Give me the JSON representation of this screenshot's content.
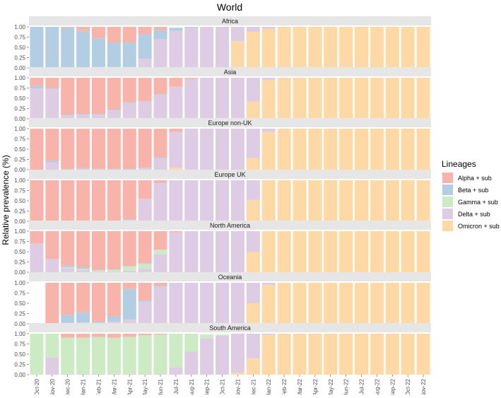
{
  "chart_data": {
    "type": "bar",
    "stacked": true,
    "title": "World",
    "ylabel": "Relative prevalence (%)",
    "xlabel": "",
    "ylim": [
      0,
      1
    ],
    "yticks": [
      "0.00",
      "0.25",
      "0.50",
      "0.75",
      "1.00"
    ],
    "months": [
      "Oct-20",
      "Nov-20",
      "Dec-20",
      "Jan-21",
      "Feb-21",
      "Mar-21",
      "Apr-21",
      "May-21",
      "Jun-21",
      "Jul-21",
      "Aug-21",
      "Sep-21",
      "Oct-21",
      "Nov-21",
      "Dec-21",
      "Jan-22",
      "Feb-22",
      "Mar-22",
      "Apr-22",
      "May-22",
      "Jun-22",
      "Jul-22",
      "Aug-22",
      "Sep-22",
      "Oct-22",
      "Nov-22"
    ],
    "legend": {
      "title": "Lineages",
      "position": "right",
      "entries": [
        {
          "key": "alpha",
          "label": "Alpha + sub",
          "color": "#F8B3AB"
        },
        {
          "key": "beta",
          "label": "Beta + sub",
          "color": "#B3CDE3"
        },
        {
          "key": "gamma",
          "label": "Gamma + sub",
          "color": "#CCEBC5"
        },
        {
          "key": "delta",
          "label": "Delta + sub",
          "color": "#DECBE4"
        },
        {
          "key": "omicron",
          "label": "Omicron + sub",
          "color": "#FED9A6"
        }
      ]
    },
    "series_order_bottom_to_top": [
      "omicron",
      "delta",
      "gamma",
      "beta",
      "alpha"
    ],
    "panels": [
      {
        "name": "Africa",
        "alpha": [
          0,
          0,
          0.02,
          0.1,
          0.28,
          0.38,
          0.38,
          0.18,
          0.08,
          0,
          0,
          0,
          0,
          0,
          0,
          0,
          0,
          0,
          0,
          0,
          0,
          0,
          0,
          0,
          0,
          0
        ],
        "beta": [
          1,
          1,
          0.98,
          0.9,
          0.7,
          0.6,
          0.6,
          0.6,
          0.22,
          0.08,
          0.02,
          0,
          0,
          0,
          0,
          0,
          0,
          0,
          0,
          0,
          0,
          0,
          0,
          0,
          0,
          0
        ],
        "gamma": [
          0,
          0,
          0,
          0,
          0,
          0,
          0,
          0,
          0,
          0,
          0,
          0,
          0,
          0,
          0,
          0,
          0,
          0,
          0,
          0,
          0,
          0,
          0,
          0,
          0,
          0
        ],
        "delta": [
          0,
          0,
          0,
          0,
          0.02,
          0.02,
          0.02,
          0.22,
          0.7,
          0.9,
          0.98,
          1,
          1,
          0.35,
          0.12,
          0.05,
          0,
          0,
          0,
          0,
          0,
          0,
          0,
          0,
          0,
          0
        ],
        "omicron": [
          0,
          0,
          0,
          0,
          0,
          0,
          0,
          0,
          0,
          0,
          0,
          0,
          0,
          0.65,
          0.88,
          0.95,
          1,
          1,
          1,
          1,
          1,
          1,
          1,
          1,
          1,
          1
        ]
      },
      {
        "name": "Asia",
        "alpha": [
          0.2,
          0.25,
          0.9,
          0.88,
          0.88,
          0.78,
          0.6,
          0.57,
          0.4,
          0.22,
          0.03,
          0,
          0,
          0,
          0,
          0,
          0,
          0,
          0,
          0,
          0,
          0,
          0,
          0,
          0,
          0
        ],
        "beta": [
          0.06,
          0.02,
          0.02,
          0.02,
          0.02,
          0.02,
          0.02,
          0,
          0.02,
          0,
          0,
          0,
          0,
          0,
          0,
          0,
          0,
          0,
          0,
          0,
          0,
          0,
          0,
          0,
          0,
          0
        ],
        "gamma": [
          0,
          0,
          0,
          0,
          0,
          0,
          0,
          0,
          0,
          0,
          0,
          0,
          0,
          0,
          0,
          0,
          0,
          0,
          0,
          0,
          0,
          0,
          0,
          0,
          0,
          0
        ],
        "delta": [
          0.74,
          0.73,
          0.08,
          0.1,
          0.1,
          0.2,
          0.38,
          0.43,
          0.58,
          0.78,
          0.97,
          1,
          1,
          1,
          0.58,
          0.05,
          0,
          0,
          0,
          0,
          0,
          0,
          0,
          0,
          0,
          0
        ],
        "omicron": [
          0,
          0,
          0,
          0,
          0,
          0,
          0,
          0,
          0,
          0,
          0,
          0,
          0,
          0,
          0.42,
          0.95,
          1,
          1,
          1,
          1,
          1,
          1,
          1,
          1,
          1,
          1
        ]
      },
      {
        "name": "Europe non-UK",
        "alpha": [
          1,
          0.78,
          0.98,
          0.96,
          0.98,
          0.98,
          0.98,
          0.95,
          0.7,
          0.08,
          0,
          0,
          0,
          0,
          0,
          0,
          0,
          0,
          0,
          0,
          0,
          0,
          0,
          0,
          0,
          0
        ],
        "beta": [
          0,
          0.04,
          0.01,
          0.02,
          0.01,
          0.01,
          0.01,
          0.01,
          0.02,
          0,
          0,
          0,
          0,
          0,
          0,
          0,
          0,
          0,
          0,
          0,
          0,
          0,
          0,
          0,
          0,
          0
        ],
        "gamma": [
          0,
          0,
          0,
          0,
          0,
          0,
          0,
          0,
          0,
          0,
          0,
          0,
          0,
          0,
          0,
          0,
          0,
          0,
          0,
          0,
          0,
          0,
          0,
          0,
          0,
          0
        ],
        "delta": [
          0,
          0.18,
          0.01,
          0.02,
          0.01,
          0.01,
          0.01,
          0.04,
          0.28,
          0.87,
          1,
          1,
          1,
          1,
          0.72,
          0.08,
          0,
          0,
          0,
          0,
          0,
          0,
          0,
          0,
          0,
          0
        ],
        "omicron": [
          0,
          0,
          0,
          0,
          0,
          0,
          0,
          0,
          0,
          0.05,
          0,
          0,
          0,
          0,
          0.28,
          0.92,
          1,
          1,
          1,
          1,
          1,
          1,
          1,
          1,
          1,
          1
        ]
      },
      {
        "name": "Europe UK",
        "alpha": [
          1,
          1,
          1,
          1,
          1,
          1,
          0.95,
          0.45,
          0.06,
          0,
          0,
          0,
          0,
          0,
          0,
          0,
          0,
          0,
          0,
          0,
          0,
          0,
          0,
          0,
          0,
          0
        ],
        "beta": [
          0,
          0,
          0,
          0,
          0,
          0,
          0.02,
          0,
          0,
          0,
          0,
          0,
          0,
          0,
          0,
          0,
          0,
          0,
          0,
          0,
          0,
          0,
          0,
          0,
          0,
          0
        ],
        "gamma": [
          0,
          0,
          0,
          0,
          0,
          0,
          0,
          0,
          0,
          0,
          0,
          0,
          0,
          0,
          0,
          0,
          0,
          0,
          0,
          0,
          0,
          0,
          0,
          0,
          0,
          0
        ],
        "delta": [
          0,
          0,
          0,
          0,
          0,
          0,
          0.03,
          0.55,
          0.94,
          1,
          1,
          1,
          1,
          1,
          0.48,
          0,
          0,
          0,
          0,
          0,
          0,
          0,
          0,
          0,
          0,
          0
        ],
        "omicron": [
          0,
          0,
          0,
          0,
          0,
          0,
          0,
          0,
          0,
          0,
          0,
          0,
          0,
          0,
          0.52,
          1,
          1,
          1,
          1,
          1,
          1,
          1,
          1,
          1,
          1,
          1
        ]
      },
      {
        "name": "North America",
        "alpha": [
          0.3,
          0.68,
          0.84,
          0.88,
          0.95,
          0.93,
          0.85,
          0.78,
          0.45,
          0.03,
          0,
          0,
          0,
          0,
          0,
          0,
          0,
          0,
          0,
          0,
          0,
          0,
          0,
          0,
          0,
          0
        ],
        "beta": [
          0,
          0,
          0.04,
          0.04,
          0.01,
          0.01,
          0.01,
          0.02,
          0,
          0,
          0,
          0,
          0,
          0,
          0,
          0,
          0,
          0,
          0,
          0,
          0,
          0,
          0,
          0,
          0,
          0
        ],
        "gamma": [
          0,
          0,
          0.02,
          0.03,
          0.02,
          0.04,
          0.1,
          0.12,
          0.12,
          0,
          0,
          0,
          0,
          0,
          0,
          0,
          0,
          0,
          0,
          0,
          0,
          0,
          0,
          0,
          0,
          0
        ],
        "delta": [
          0.7,
          0.32,
          0.1,
          0.05,
          0.02,
          0.02,
          0.04,
          0.08,
          0.43,
          0.97,
          1,
          1,
          1,
          1,
          0.5,
          0,
          0,
          0,
          0,
          0,
          0,
          0,
          0,
          0,
          0,
          0
        ],
        "omicron": [
          0,
          0,
          0,
          0,
          0,
          0,
          0,
          0,
          0,
          0,
          0,
          0,
          0,
          0,
          0.5,
          1,
          1,
          1,
          1,
          1,
          1,
          1,
          1,
          1,
          1,
          1
        ]
      },
      {
        "name": "Oceania",
        "alpha": [
          0,
          1,
          0.78,
          0.72,
          0.95,
          0.82,
          0.15,
          0.43,
          0.08,
          0,
          0,
          0,
          0,
          0,
          0,
          0,
          0,
          0,
          0,
          0,
          0,
          0,
          0,
          0,
          0,
          0
        ],
        "beta": [
          0,
          0,
          0.2,
          0.25,
          0.03,
          0.12,
          0.75,
          0.03,
          0.02,
          0,
          0,
          0,
          0,
          0,
          0,
          0,
          0,
          0,
          0,
          0,
          0,
          0,
          0,
          0,
          0,
          0
        ],
        "gamma": [
          0,
          0,
          0,
          0,
          0,
          0,
          0,
          0,
          0,
          0,
          0,
          0,
          0,
          0,
          0,
          0,
          0,
          0,
          0,
          0,
          0,
          0,
          0,
          0,
          0,
          0
        ],
        "delta": [
          0,
          0,
          0.02,
          0.03,
          0.02,
          0.06,
          0.1,
          0.54,
          0.9,
          1,
          1,
          1,
          1,
          1,
          0.5,
          0.05,
          0,
          0,
          0,
          0,
          0,
          0,
          0,
          0,
          0,
          0
        ],
        "omicron": [
          0,
          0,
          0,
          0,
          0,
          0,
          0,
          0,
          0,
          0,
          0,
          0,
          0,
          0,
          0.5,
          0.95,
          1,
          1,
          1,
          1,
          1,
          1,
          1,
          1,
          1,
          1
        ]
      },
      {
        "name": "South America",
        "alpha": [
          0,
          0,
          0.1,
          0.1,
          0.08,
          0.1,
          0.08,
          0.04,
          0.02,
          0,
          0,
          0,
          0,
          0,
          0,
          0,
          0,
          0,
          0,
          0,
          0,
          0,
          0,
          0,
          0,
          0
        ],
        "beta": [
          0,
          0,
          0,
          0,
          0,
          0,
          0,
          0,
          0,
          0,
          0,
          0,
          0,
          0,
          0,
          0,
          0,
          0,
          0,
          0,
          0,
          0,
          0,
          0,
          0,
          0
        ],
        "gamma": [
          1,
          0.58,
          0.88,
          0.88,
          0.9,
          0.88,
          0.9,
          0.94,
          0.96,
          0.82,
          0.44,
          0.1,
          0.03,
          0,
          0,
          0,
          0,
          0,
          0,
          0,
          0,
          0,
          0,
          0,
          0,
          0
        ],
        "delta": [
          0,
          0.42,
          0.02,
          0.02,
          0.02,
          0.02,
          0.02,
          0.02,
          0.02,
          0.18,
          0.56,
          0.88,
          0.95,
          0.95,
          0.6,
          0.03,
          0,
          0,
          0,
          0,
          0,
          0,
          0,
          0,
          0,
          0
        ],
        "omicron": [
          0,
          0,
          0,
          0,
          0,
          0,
          0,
          0,
          0,
          0,
          0,
          0,
          0,
          0.05,
          0.4,
          0.97,
          1,
          1,
          1,
          1,
          1,
          1,
          1,
          1,
          1,
          1
        ]
      }
    ]
  }
}
